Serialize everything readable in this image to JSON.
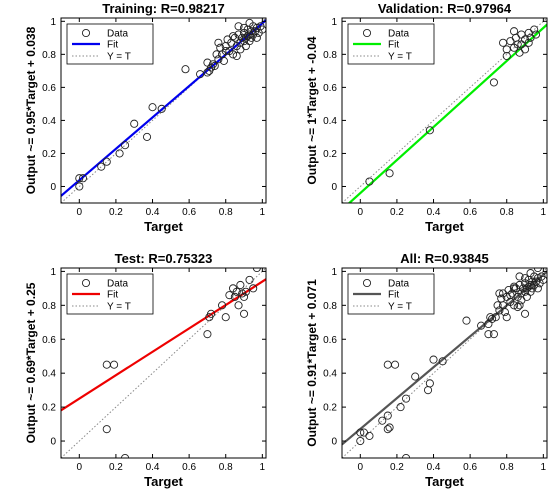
{
  "chart_data": [
    {
      "type": "scatter",
      "title": "Training: R=0.98217",
      "xlabel": "Target",
      "ylabel": "Output ~= 0.95*Target + 0.038",
      "xlim": [
        -0.1,
        1.02
      ],
      "ylim": [
        -0.1,
        1.02
      ],
      "xticks": [
        0,
        0.2,
        0.4,
        0.6,
        0.8,
        1
      ],
      "yticks": [
        0,
        0.2,
        0.4,
        0.6,
        0.8,
        1
      ],
      "grid": false,
      "legend": {
        "placement": "top-left",
        "entries": [
          "Data",
          "Fit",
          "Y = T"
        ]
      },
      "fit": {
        "slope": 0.95,
        "intercept": 0.038,
        "color": "#0000ee"
      },
      "points": [
        [
          0.0,
          0.05
        ],
        [
          0.02,
          0.05
        ],
        [
          0.0,
          0.0
        ],
        [
          0.12,
          0.12
        ],
        [
          0.15,
          0.15
        ],
        [
          0.22,
          0.2
        ],
        [
          0.25,
          0.25
        ],
        [
          0.3,
          0.38
        ],
        [
          0.37,
          0.3
        ],
        [
          0.4,
          0.48
        ],
        [
          0.45,
          0.47
        ],
        [
          0.58,
          0.71
        ],
        [
          0.66,
          0.68
        ],
        [
          0.7,
          0.69
        ],
        [
          0.7,
          0.75
        ],
        [
          0.71,
          0.7
        ],
        [
          0.72,
          0.72
        ],
        [
          0.73,
          0.74
        ],
        [
          0.74,
          0.73
        ],
        [
          0.75,
          0.8
        ],
        [
          0.76,
          0.77
        ],
        [
          0.77,
          0.84
        ],
        [
          0.78,
          0.8
        ],
        [
          0.79,
          0.76
        ],
        [
          0.8,
          0.85
        ],
        [
          0.81,
          0.89
        ],
        [
          0.82,
          0.82
        ],
        [
          0.83,
          0.87
        ],
        [
          0.84,
          0.8
        ],
        [
          0.85,
          0.9
        ],
        [
          0.86,
          0.85
        ],
        [
          0.86,
          0.79
        ],
        [
          0.87,
          0.92
        ],
        [
          0.88,
          0.87
        ],
        [
          0.88,
          0.83
        ],
        [
          0.89,
          0.9
        ],
        [
          0.9,
          0.88
        ],
        [
          0.9,
          0.93
        ],
        [
          0.91,
          0.85
        ],
        [
          0.91,
          0.9
        ],
        [
          0.92,
          0.91
        ],
        [
          0.92,
          0.95
        ],
        [
          0.93,
          0.88
        ],
        [
          0.93,
          0.92
        ],
        [
          0.94,
          0.9
        ],
        [
          0.94,
          0.94
        ],
        [
          0.95,
          0.92
        ],
        [
          0.95,
          0.97
        ],
        [
          0.96,
          0.94
        ],
        [
          0.97,
          0.9
        ],
        [
          0.97,
          0.96
        ],
        [
          0.98,
          0.93
        ],
        [
          0.99,
          0.97
        ],
        [
          1.0,
          0.95
        ],
        [
          0.87,
          0.97
        ],
        [
          0.84,
          0.91
        ],
        [
          0.8,
          0.82
        ],
        [
          0.76,
          0.87
        ],
        [
          0.9,
          0.96
        ],
        [
          0.93,
          0.99
        ]
      ]
    },
    {
      "type": "scatter",
      "title": "Validation: R=0.97964",
      "xlabel": "Target",
      "ylabel": "Output ~= 1*Target + -0.04",
      "xlim": [
        -0.1,
        1.02
      ],
      "ylim": [
        -0.1,
        1.02
      ],
      "xticks": [
        0,
        0.2,
        0.4,
        0.6,
        0.8,
        1
      ],
      "yticks": [
        0,
        0.2,
        0.4,
        0.6,
        0.8,
        1
      ],
      "grid": false,
      "legend": {
        "placement": "top-left",
        "entries": [
          "Data",
          "Fit",
          "Y = T"
        ]
      },
      "fit": {
        "slope": 1,
        "intercept": -0.04,
        "color": "#00ee00"
      },
      "points": [
        [
          0.05,
          0.03
        ],
        [
          0.16,
          0.08
        ],
        [
          0.38,
          0.34
        ],
        [
          0.73,
          0.63
        ],
        [
          0.78,
          0.87
        ],
        [
          0.8,
          0.83
        ],
        [
          0.82,
          0.88
        ],
        [
          0.84,
          0.84
        ],
        [
          0.85,
          0.9
        ],
        [
          0.86,
          0.86
        ],
        [
          0.88,
          0.86
        ],
        [
          0.88,
          0.92
        ],
        [
          0.9,
          0.89
        ],
        [
          0.9,
          0.83
        ],
        [
          0.92,
          0.87
        ],
        [
          0.92,
          0.93
        ],
        [
          0.93,
          0.9
        ],
        [
          0.95,
          0.95
        ],
        [
          0.96,
          0.92
        ],
        [
          0.84,
          0.94
        ],
        [
          0.87,
          0.81
        ],
        [
          0.8,
          0.79
        ]
      ]
    },
    {
      "type": "scatter",
      "title": "Test: R=0.75323",
      "xlabel": "Target",
      "ylabel": "Output ~= 0.69*Target + 0.25",
      "xlim": [
        -0.1,
        1.02
      ],
      "ylim": [
        -0.1,
        1.02
      ],
      "xticks": [
        0,
        0.2,
        0.4,
        0.6,
        0.8,
        1
      ],
      "yticks": [
        0,
        0.2,
        0.4,
        0.6,
        0.8,
        1
      ],
      "grid": false,
      "legend": {
        "placement": "top-left",
        "entries": [
          "Data",
          "Fit",
          "Y = T"
        ]
      },
      "fit": {
        "slope": 0.69,
        "intercept": 0.25,
        "color": "#ee0000"
      },
      "points": [
        [
          0.15,
          0.07
        ],
        [
          0.15,
          0.45
        ],
        [
          0.19,
          0.45
        ],
        [
          0.25,
          -0.1
        ],
        [
          0.7,
          0.63
        ],
        [
          0.71,
          0.73
        ],
        [
          0.72,
          0.75
        ],
        [
          0.78,
          0.8
        ],
        [
          0.8,
          0.73
        ],
        [
          0.82,
          0.86
        ],
        [
          0.84,
          0.9
        ],
        [
          0.86,
          0.88
        ],
        [
          0.87,
          0.8
        ],
        [
          0.88,
          0.92
        ],
        [
          0.89,
          0.87
        ],
        [
          0.9,
          0.85
        ],
        [
          0.9,
          0.75
        ],
        [
          0.91,
          0.88
        ],
        [
          0.93,
          0.95
        ],
        [
          0.97,
          1.02
        ],
        [
          0.85,
          0.85
        ],
        [
          0.95,
          0.9
        ]
      ]
    },
    {
      "type": "scatter",
      "title": "All: R=0.93845",
      "xlabel": "Target",
      "ylabel": "Output ~= 0.91*Target + 0.071",
      "xlim": [
        -0.1,
        1.02
      ],
      "ylim": [
        -0.1,
        1.02
      ],
      "xticks": [
        0,
        0.2,
        0.4,
        0.6,
        0.8,
        1
      ],
      "yticks": [
        0,
        0.2,
        0.4,
        0.6,
        0.8,
        1
      ],
      "grid": false,
      "legend": {
        "placement": "top-left",
        "entries": [
          "Data",
          "Fit",
          "Y = T"
        ]
      },
      "fit": {
        "slope": 0.91,
        "intercept": 0.071,
        "color": "#555555"
      },
      "points": [
        [
          0.0,
          0.05
        ],
        [
          0.02,
          0.05
        ],
        [
          0.0,
          0.0
        ],
        [
          0.05,
          0.03
        ],
        [
          0.12,
          0.12
        ],
        [
          0.15,
          0.15
        ],
        [
          0.15,
          0.07
        ],
        [
          0.15,
          0.45
        ],
        [
          0.16,
          0.08
        ],
        [
          0.19,
          0.45
        ],
        [
          0.22,
          0.2
        ],
        [
          0.25,
          0.25
        ],
        [
          0.25,
          -0.1
        ],
        [
          0.3,
          0.38
        ],
        [
          0.37,
          0.3
        ],
        [
          0.38,
          0.34
        ],
        [
          0.4,
          0.48
        ],
        [
          0.45,
          0.47
        ],
        [
          0.58,
          0.71
        ],
        [
          0.66,
          0.68
        ],
        [
          0.7,
          0.63
        ],
        [
          0.7,
          0.69
        ],
        [
          0.71,
          0.73
        ],
        [
          0.72,
          0.72
        ],
        [
          0.73,
          0.63
        ],
        [
          0.74,
          0.73
        ],
        [
          0.75,
          0.8
        ],
        [
          0.76,
          0.77
        ],
        [
          0.77,
          0.84
        ],
        [
          0.78,
          0.8
        ],
        [
          0.78,
          0.87
        ],
        [
          0.79,
          0.76
        ],
        [
          0.8,
          0.73
        ],
        [
          0.8,
          0.85
        ],
        [
          0.81,
          0.89
        ],
        [
          0.82,
          0.82
        ],
        [
          0.82,
          0.86
        ],
        [
          0.83,
          0.87
        ],
        [
          0.84,
          0.8
        ],
        [
          0.84,
          0.9
        ],
        [
          0.85,
          0.9
        ],
        [
          0.86,
          0.85
        ],
        [
          0.86,
          0.79
        ],
        [
          0.87,
          0.92
        ],
        [
          0.87,
          0.8
        ],
        [
          0.88,
          0.87
        ],
        [
          0.88,
          0.83
        ],
        [
          0.89,
          0.9
        ],
        [
          0.9,
          0.88
        ],
        [
          0.9,
          0.93
        ],
        [
          0.9,
          0.75
        ],
        [
          0.91,
          0.85
        ],
        [
          0.91,
          0.9
        ],
        [
          0.92,
          0.91
        ],
        [
          0.92,
          0.95
        ],
        [
          0.93,
          0.88
        ],
        [
          0.93,
          0.92
        ],
        [
          0.94,
          0.9
        ],
        [
          0.94,
          0.94
        ],
        [
          0.95,
          0.92
        ],
        [
          0.95,
          0.97
        ],
        [
          0.96,
          0.94
        ],
        [
          0.97,
          0.9
        ],
        [
          0.97,
          0.96
        ],
        [
          0.97,
          1.02
        ],
        [
          0.98,
          0.93
        ],
        [
          0.99,
          0.97
        ],
        [
          1.0,
          0.95
        ],
        [
          0.87,
          0.97
        ],
        [
          0.84,
          0.91
        ],
        [
          0.76,
          0.87
        ],
        [
          0.9,
          0.96
        ],
        [
          0.93,
          0.99
        ]
      ]
    }
  ]
}
